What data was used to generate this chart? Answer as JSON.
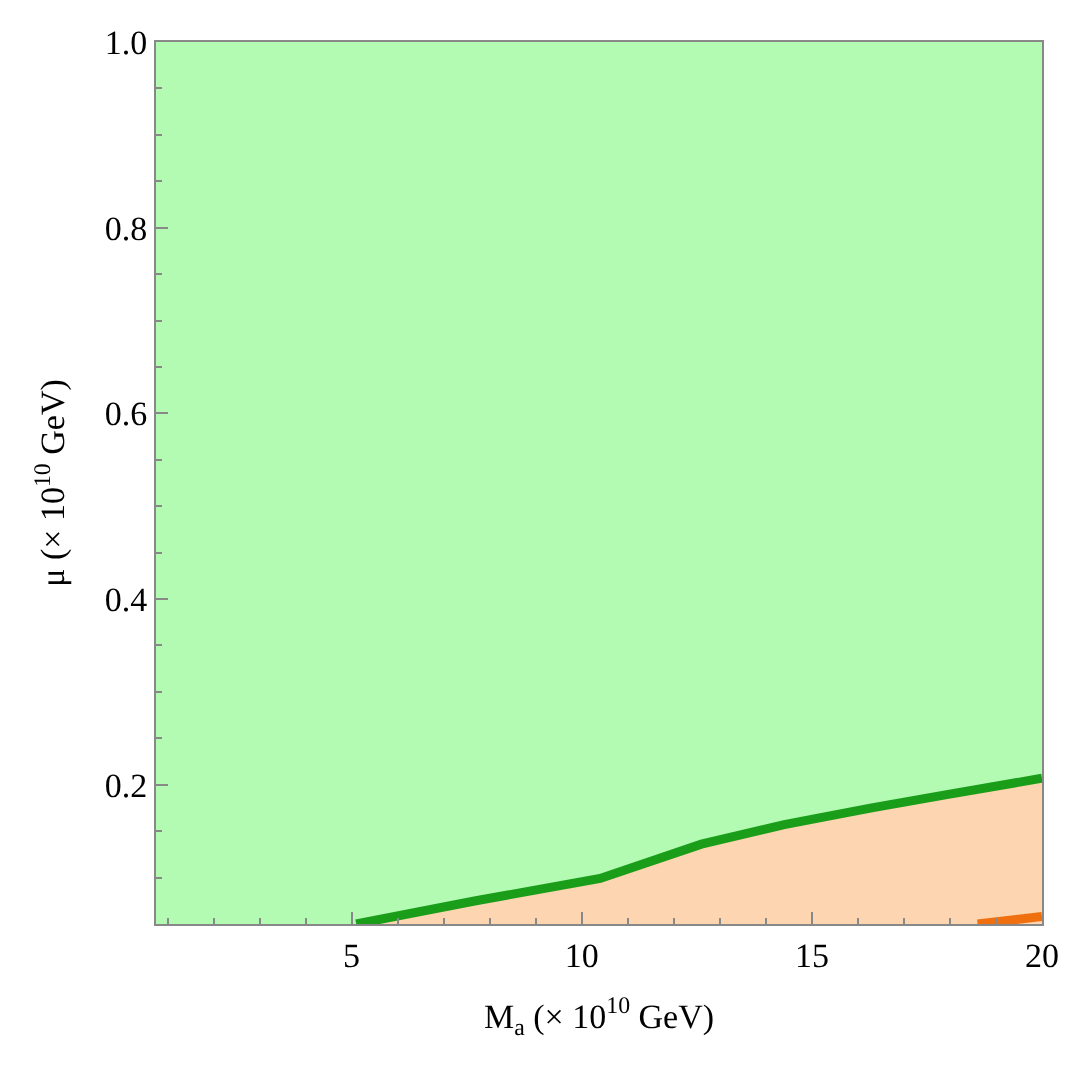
{
  "chart_data": {
    "type": "line",
    "xlabel": "M$_{a}$ (× 10$^{10}$ GeV)",
    "ylabel": "μ (× 10$^{10}$ GeV)",
    "xlim": [
      0.75,
      20
    ],
    "ylim": [
      0.05,
      1.0
    ],
    "xticks": [
      5,
      10,
      15,
      20
    ],
    "yticks": [
      {
        "value": 0.2,
        "label": "0.2"
      },
      {
        "value": 0.4,
        "label": "0.4"
      },
      {
        "value": 0.6,
        "label": "0.6"
      },
      {
        "value": 0.8,
        "label": "0.8"
      },
      {
        "value": 1.0,
        "label": "1.0"
      }
    ],
    "grid": false,
    "marker": "none",
    "bands": [
      {
        "axis": "y",
        "from": 0.05,
        "to": 1.0,
        "color": "#b3fab3"
      }
    ],
    "series": [
      {
        "type": "area",
        "color": "#fdd5b0",
        "x": [
          5.1,
          7.7,
          10.4,
          12.6,
          14.4,
          16.3,
          17.9,
          20
        ],
        "values": [
          0.05,
          0.075,
          0.099,
          0.136,
          0.157,
          0.175,
          0.189,
          0.207
        ]
      },
      {
        "color": "#1a9e1a",
        "x": [
          5.1,
          7.7,
          10.4,
          12.6,
          14.4,
          16.3,
          17.9,
          20
        ],
        "values": [
          0.05,
          0.075,
          0.099,
          0.136,
          0.157,
          0.175,
          0.189,
          0.207
        ]
      },
      {
        "color": "#f07010",
        "x": [
          18.6,
          20
        ],
        "values": [
          0.05,
          0.058
        ]
      }
    ]
  }
}
